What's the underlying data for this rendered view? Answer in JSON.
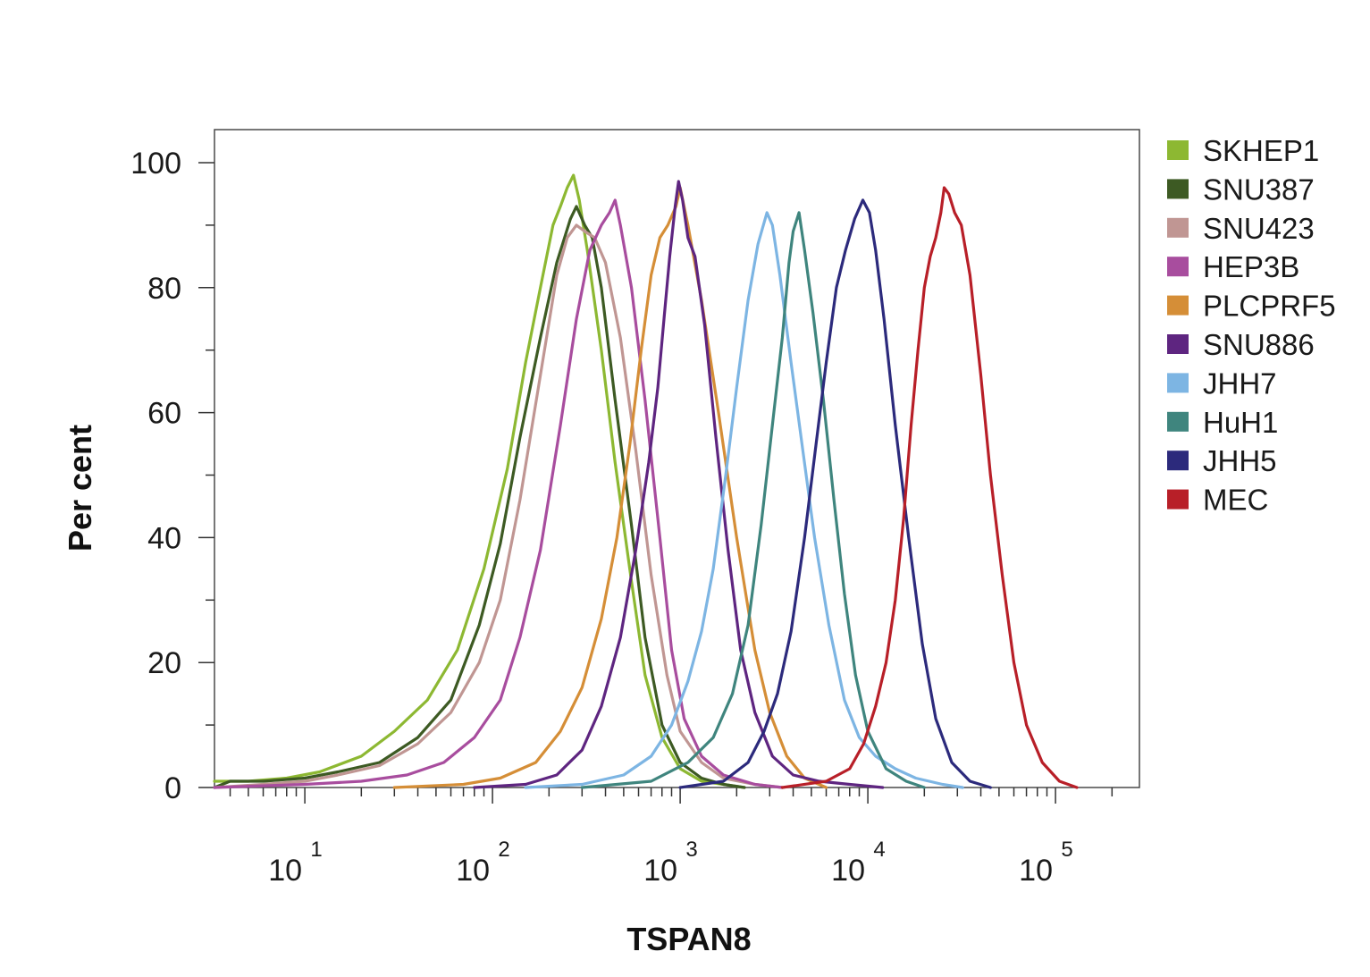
{
  "chart_data": {
    "type": "line",
    "title": "",
    "xlabel": "TSPAN8",
    "ylabel": "Per cent",
    "xscale": "log",
    "xlim": [
      3.3,
      280000
    ],
    "ylim": [
      0,
      105
    ],
    "grid": false,
    "legend_position": "right",
    "y_ticks": [
      0,
      20,
      40,
      60,
      80,
      100
    ],
    "x_ticks": [
      {
        "value": 10,
        "base": "10",
        "exp": "1"
      },
      {
        "value": 100,
        "base": "10",
        "exp": "2"
      },
      {
        "value": 1000,
        "base": "10",
        "exp": "3"
      },
      {
        "value": 10000,
        "base": "10",
        "exp": "4"
      },
      {
        "value": 100000,
        "base": "10",
        "exp": "5"
      }
    ],
    "series": [
      {
        "name": "SKHEP1",
        "color": "#8db832",
        "points": [
          [
            3.3,
            1
          ],
          [
            5,
            1
          ],
          [
            8,
            1.5
          ],
          [
            12,
            2.5
          ],
          [
            20,
            5
          ],
          [
            30,
            9
          ],
          [
            45,
            14
          ],
          [
            65,
            22
          ],
          [
            90,
            35
          ],
          [
            120,
            51
          ],
          [
            150,
            68
          ],
          [
            180,
            80
          ],
          [
            210,
            90
          ],
          [
            230,
            93
          ],
          [
            250,
            96
          ],
          [
            270,
            98
          ],
          [
            290,
            94
          ],
          [
            320,
            86
          ],
          [
            380,
            70
          ],
          [
            450,
            52
          ],
          [
            550,
            33
          ],
          [
            650,
            18
          ],
          [
            800,
            8
          ],
          [
            1000,
            3
          ],
          [
            1300,
            1
          ],
          [
            1700,
            0.5
          ],
          [
            2200,
            0
          ]
        ]
      },
      {
        "name": "SNU387",
        "color": "#3d5a23",
        "points": [
          [
            3.3,
            0
          ],
          [
            4,
            1
          ],
          [
            6,
            1
          ],
          [
            10,
            1.5
          ],
          [
            15,
            2.5
          ],
          [
            25,
            4
          ],
          [
            40,
            8
          ],
          [
            60,
            14
          ],
          [
            85,
            26
          ],
          [
            110,
            39
          ],
          [
            140,
            56
          ],
          [
            180,
            72
          ],
          [
            220,
            84
          ],
          [
            260,
            91
          ],
          [
            280,
            93
          ],
          [
            310,
            90
          ],
          [
            340,
            88
          ],
          [
            380,
            80
          ],
          [
            450,
            62
          ],
          [
            550,
            42
          ],
          [
            650,
            24
          ],
          [
            800,
            10
          ],
          [
            1000,
            4
          ],
          [
            1300,
            1.5
          ],
          [
            1700,
            0.5
          ],
          [
            2200,
            0
          ]
        ]
      },
      {
        "name": "SNU423",
        "color": "#c09693",
        "points": [
          [
            3.3,
            0
          ],
          [
            6,
            0.5
          ],
          [
            10,
            1
          ],
          [
            15,
            2
          ],
          [
            25,
            3.5
          ],
          [
            40,
            7
          ],
          [
            60,
            12
          ],
          [
            85,
            20
          ],
          [
            110,
            30
          ],
          [
            140,
            46
          ],
          [
            180,
            66
          ],
          [
            220,
            82
          ],
          [
            250,
            88
          ],
          [
            280,
            90
          ],
          [
            310,
            89
          ],
          [
            350,
            88
          ],
          [
            400,
            84
          ],
          [
            480,
            72
          ],
          [
            580,
            54
          ],
          [
            700,
            34
          ],
          [
            850,
            18
          ],
          [
            1000,
            9
          ],
          [
            1300,
            4
          ],
          [
            1700,
            1.5
          ],
          [
            2500,
            0.5
          ],
          [
            3500,
            0
          ]
        ]
      },
      {
        "name": "HEP3B",
        "color": "#a84d9e",
        "points": [
          [
            3.3,
            0
          ],
          [
            10,
            0.5
          ],
          [
            20,
            1
          ],
          [
            35,
            2
          ],
          [
            55,
            4
          ],
          [
            80,
            8
          ],
          [
            110,
            14
          ],
          [
            140,
            24
          ],
          [
            180,
            38
          ],
          [
            230,
            58
          ],
          [
            280,
            75
          ],
          [
            330,
            86
          ],
          [
            380,
            90
          ],
          [
            420,
            92
          ],
          [
            450,
            94
          ],
          [
            480,
            90
          ],
          [
            550,
            80
          ],
          [
            650,
            62
          ],
          [
            780,
            40
          ],
          [
            900,
            22
          ],
          [
            1050,
            11
          ],
          [
            1300,
            5
          ],
          [
            1700,
            2
          ],
          [
            2500,
            0.5
          ],
          [
            3500,
            0
          ]
        ]
      },
      {
        "name": "PLCPRF5",
        "color": "#d58e37",
        "points": [
          [
            30,
            0
          ],
          [
            70,
            0.5
          ],
          [
            110,
            1.5
          ],
          [
            170,
            4
          ],
          [
            230,
            9
          ],
          [
            300,
            16
          ],
          [
            380,
            27
          ],
          [
            460,
            40
          ],
          [
            540,
            55
          ],
          [
            620,
            70
          ],
          [
            700,
            82
          ],
          [
            780,
            88
          ],
          [
            860,
            90
          ],
          [
            950,
            93
          ],
          [
            1000,
            96
          ],
          [
            1100,
            90
          ],
          [
            1300,
            78
          ],
          [
            1600,
            60
          ],
          [
            2000,
            40
          ],
          [
            2500,
            22
          ],
          [
            3000,
            12
          ],
          [
            3700,
            5
          ],
          [
            4600,
            1.5
          ],
          [
            6000,
            0
          ]
        ]
      },
      {
        "name": "SNU886",
        "color": "#5e2580",
        "points": [
          [
            80,
            0
          ],
          [
            150,
            0.5
          ],
          [
            220,
            2
          ],
          [
            300,
            6
          ],
          [
            380,
            13
          ],
          [
            480,
            24
          ],
          [
            580,
            38
          ],
          [
            680,
            52
          ],
          [
            760,
            64
          ],
          [
            820,
            75
          ],
          [
            880,
            85
          ],
          [
            940,
            93
          ],
          [
            980,
            97
          ],
          [
            1030,
            94
          ],
          [
            1100,
            88
          ],
          [
            1200,
            85
          ],
          [
            1350,
            74
          ],
          [
            1550,
            56
          ],
          [
            1800,
            38
          ],
          [
            2100,
            22
          ],
          [
            2500,
            12
          ],
          [
            3100,
            5
          ],
          [
            4000,
            2
          ],
          [
            5500,
            1
          ],
          [
            8000,
            0.5
          ],
          [
            12000,
            0
          ]
        ]
      },
      {
        "name": "JHH7",
        "color": "#7db5e3",
        "points": [
          [
            150,
            0
          ],
          [
            300,
            0.5
          ],
          [
            500,
            2
          ],
          [
            700,
            5
          ],
          [
            900,
            10
          ],
          [
            1100,
            17
          ],
          [
            1300,
            25
          ],
          [
            1500,
            35
          ],
          [
            1750,
            50
          ],
          [
            2000,
            64
          ],
          [
            2300,
            78
          ],
          [
            2600,
            87
          ],
          [
            2900,
            92
          ],
          [
            3100,
            90
          ],
          [
            3400,
            82
          ],
          [
            3900,
            68
          ],
          [
            4500,
            54
          ],
          [
            5200,
            40
          ],
          [
            6200,
            26
          ],
          [
            7500,
            14
          ],
          [
            9000,
            8
          ],
          [
            11000,
            5
          ],
          [
            14000,
            3
          ],
          [
            18000,
            1.5
          ],
          [
            25000,
            0.5
          ],
          [
            32000,
            0
          ]
        ]
      },
      {
        "name": "HuH1",
        "color": "#3f857e",
        "points": [
          [
            300,
            0
          ],
          [
            700,
            1
          ],
          [
            1100,
            4
          ],
          [
            1500,
            8
          ],
          [
            1900,
            15
          ],
          [
            2300,
            26
          ],
          [
            2700,
            42
          ],
          [
            3100,
            58
          ],
          [
            3500,
            72
          ],
          [
            3800,
            84
          ],
          [
            4000,
            89
          ],
          [
            4300,
            92
          ],
          [
            4600,
            86
          ],
          [
            5100,
            76
          ],
          [
            5800,
            62
          ],
          [
            6600,
            46
          ],
          [
            7500,
            31
          ],
          [
            8600,
            18
          ],
          [
            10000,
            9
          ],
          [
            12500,
            3
          ],
          [
            16000,
            1
          ],
          [
            20000,
            0
          ]
        ]
      },
      {
        "name": "JHH5",
        "color": "#2c2a7c",
        "points": [
          [
            1000,
            0
          ],
          [
            1700,
            1
          ],
          [
            2300,
            4
          ],
          [
            2800,
            9
          ],
          [
            3300,
            15
          ],
          [
            3900,
            25
          ],
          [
            4600,
            40
          ],
          [
            5300,
            55
          ],
          [
            6000,
            68
          ],
          [
            6800,
            80
          ],
          [
            7600,
            86
          ],
          [
            8500,
            91
          ],
          [
            9400,
            94
          ],
          [
            10200,
            92
          ],
          [
            11000,
            86
          ],
          [
            12200,
            75
          ],
          [
            14000,
            58
          ],
          [
            16500,
            40
          ],
          [
            19500,
            23
          ],
          [
            23000,
            11
          ],
          [
            28000,
            4
          ],
          [
            35000,
            1
          ],
          [
            45000,
            0
          ]
        ]
      },
      {
        "name": "MEC",
        "color": "#b81f28",
        "points": [
          [
            3500,
            0
          ],
          [
            6000,
            1
          ],
          [
            8000,
            3
          ],
          [
            9500,
            7
          ],
          [
            11000,
            13
          ],
          [
            12500,
            20
          ],
          [
            14000,
            30
          ],
          [
            15500,
            43
          ],
          [
            17000,
            58
          ],
          [
            18500,
            70
          ],
          [
            20000,
            80
          ],
          [
            21500,
            85
          ],
          [
            23000,
            88
          ],
          [
            24500,
            92
          ],
          [
            25500,
            96
          ],
          [
            27000,
            95
          ],
          [
            29000,
            92
          ],
          [
            31500,
            90
          ],
          [
            35000,
            82
          ],
          [
            40000,
            66
          ],
          [
            45000,
            50
          ],
          [
            52000,
            34
          ],
          [
            60000,
            20
          ],
          [
            70000,
            10
          ],
          [
            85000,
            4
          ],
          [
            105000,
            1
          ],
          [
            130000,
            0
          ]
        ]
      }
    ]
  }
}
